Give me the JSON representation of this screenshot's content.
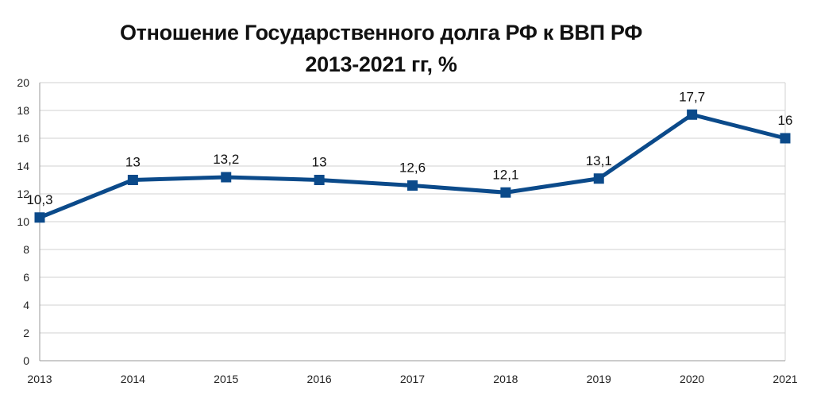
{
  "chart_data": {
    "type": "line",
    "title": "Отношение Государственного долга РФ к ВВП РФ",
    "subtitle": "2013-2021 гг, %",
    "xlabel": "",
    "ylabel": "",
    "categories": [
      "2013",
      "2014",
      "2015",
      "2016",
      "2017",
      "2018",
      "2019",
      "2020",
      "2021"
    ],
    "series": [
      {
        "values": [
          10.3,
          13,
          13.2,
          13,
          12.6,
          12.1,
          13.1,
          17.7,
          16
        ],
        "labels": [
          "10,3",
          "13",
          "13,2",
          "13",
          "12,6",
          "12,1",
          "13,1",
          "17,7",
          "16"
        ],
        "color": "#0b4a8a",
        "marker": "square"
      }
    ],
    "ylim": [
      0,
      20
    ],
    "yticks": [
      0,
      2,
      4,
      6,
      8,
      10,
      12,
      14,
      16,
      18,
      20
    ],
    "grid": true,
    "legend": "none"
  }
}
